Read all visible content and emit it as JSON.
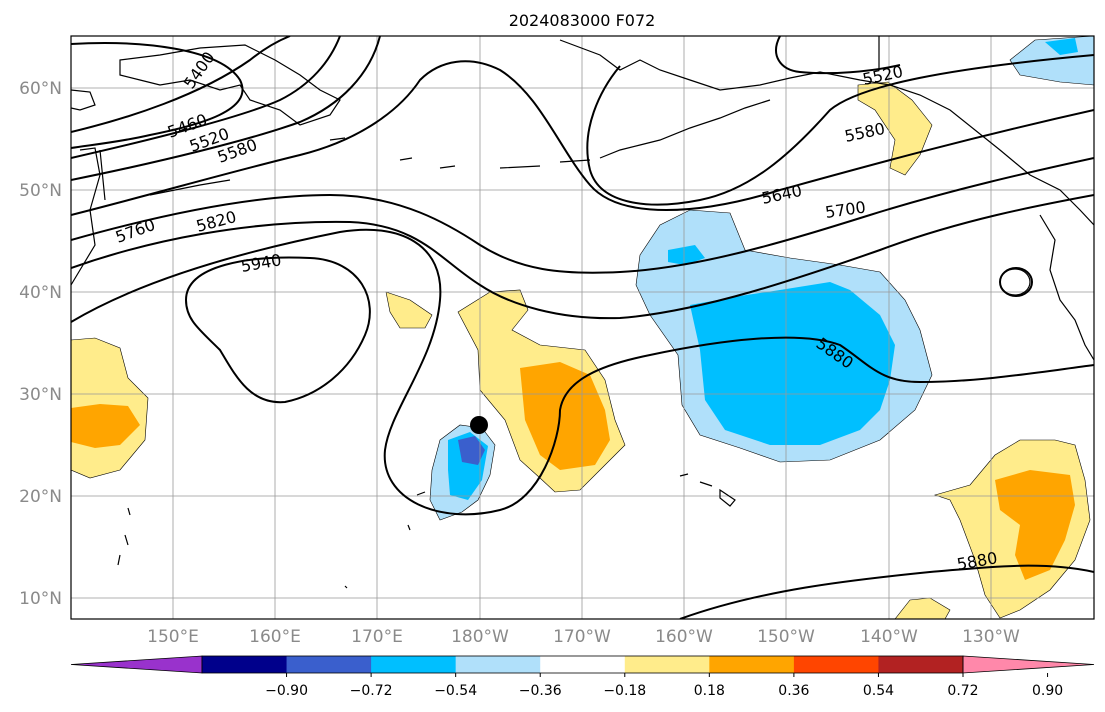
{
  "title": "2024083000 F072",
  "lat_labels": [
    "60°N",
    "50°N",
    "40°N",
    "30°N",
    "20°N",
    "10°N"
  ],
  "lon_labels": [
    "150°E",
    "160°E",
    "170°E",
    "180°W",
    "170°W",
    "160°W",
    "150°W",
    "140°W",
    "130°W"
  ],
  "colorbar": {
    "ticks": [
      "−0.90",
      "−0.72",
      "−0.54",
      "−0.36",
      "−0.18",
      "0.18",
      "0.36",
      "0.54",
      "0.72",
      "0.90"
    ],
    "colors": [
      "#9932cc",
      "#00008b",
      "#3a5fcd",
      "#00bfff",
      "#b0e0fa",
      "#ffffff",
      "#ffec8b",
      "#ffa500",
      "#ff4500",
      "#b22222",
      "#ff88aa"
    ]
  },
  "contour_labels": [
    "5400",
    "5460",
    "5520",
    "5580",
    "5760",
    "5820",
    "5940",
    "5640",
    "5700",
    "5580",
    "5520",
    "5880",
    "5880"
  ],
  "storm_marker": {
    "lat": 27,
    "lon": "180°W"
  }
}
